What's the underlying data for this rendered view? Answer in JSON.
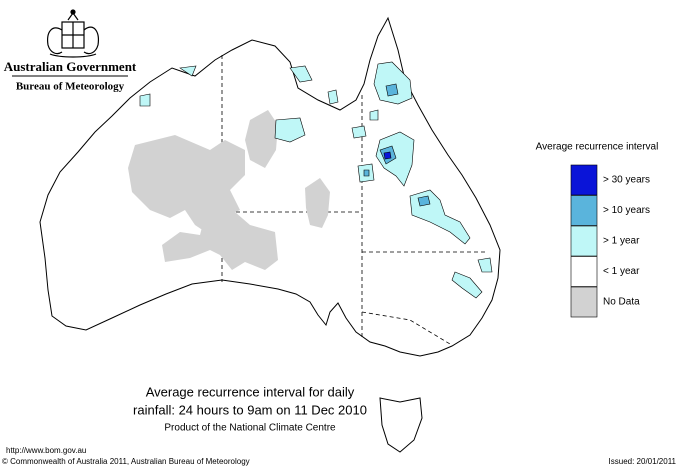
{
  "header": {
    "org": "Australian Government",
    "dept": "Bureau of Meteorology"
  },
  "legend": {
    "title": "Average recurrence interval",
    "items": [
      {
        "label": "> 30 years",
        "color": "#0a14d8"
      },
      {
        "label": "> 10 years",
        "color": "#5ab4dc"
      },
      {
        "label": "> 1 year",
        "color": "#bff7f7"
      },
      {
        "label": "< 1 year",
        "color": "#ffffff"
      },
      {
        "label": "No Data",
        "color": "#d2d2d2"
      }
    ]
  },
  "caption": {
    "line1": "Average recurrence interval for daily",
    "line2": "rainfall: 24 hours to 9am on 11 Dec 2010",
    "subtitle": "Product of the National Climate Centre"
  },
  "footer": {
    "url": "http://www.bom.gov.au",
    "copyright": "© Commonwealth of Australia 2011, Australian Bureau of Meteorology",
    "issued": "Issued: 20/01/2011"
  }
}
